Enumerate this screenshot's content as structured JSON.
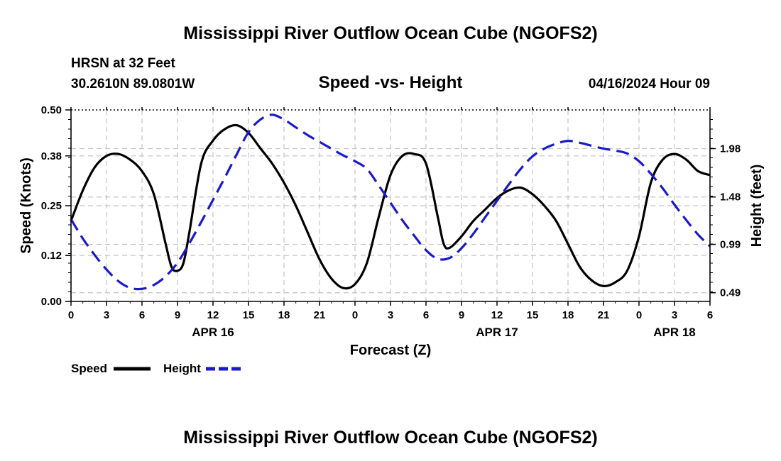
{
  "header": {
    "title": "Mississippi River Outflow Ocean Cube (NGOFS2)",
    "station": "HRSN at 32 Feet",
    "coords": "30.2610N  89.0801W",
    "datetime": "04/16/2024 Hour 09"
  },
  "footer": {
    "title": "Mississippi River Outflow Ocean Cube (NGOFS2)"
  },
  "colors": {
    "speed": "#000000",
    "height": "#1a1acc",
    "grid": "#c4c4c4"
  },
  "chart_data": {
    "type": "line",
    "title": "Speed -vs- Height",
    "xlabel": "Forecast (Z)",
    "ylabel": "Speed (Knots)",
    "y2label": "Height (feet)",
    "x_range": [
      0,
      54
    ],
    "x_ticks": [
      0,
      3,
      6,
      9,
      12,
      15,
      18,
      21,
      24,
      27,
      30,
      33,
      36,
      39,
      42,
      45,
      48,
      51,
      54
    ],
    "x_tick_labels": [
      "0",
      "3",
      "6",
      "9",
      "12",
      "15",
      "18",
      "21",
      "0",
      "3",
      "6",
      "9",
      "12",
      "15",
      "18",
      "21",
      "0",
      "3",
      "6"
    ],
    "date_labels": [
      {
        "at": 12,
        "label": "APR 16"
      },
      {
        "at": 36,
        "label": "APR 17"
      },
      {
        "at": 51,
        "label": "APR 18"
      }
    ],
    "ylim": [
      0,
      0.5
    ],
    "y_ticks": [
      0.0,
      0.12,
      0.25,
      0.38,
      0.5
    ],
    "y_tick_labels": [
      "0.00",
      "0.12",
      "0.25",
      "0.38",
      "0.50"
    ],
    "y2lim": [
      0.4,
      2.38
    ],
    "y2_ticks": [
      0.49,
      0.99,
      1.48,
      1.98
    ],
    "y2_tick_labels": [
      "0.49",
      "0.99",
      "1.48",
      "1.98"
    ],
    "legend": [
      {
        "name": "Speed",
        "style": "solid"
      },
      {
        "name": "Height",
        "style": "dashed"
      }
    ],
    "series": [
      {
        "name": "Speed",
        "axis": "left",
        "x": [
          0,
          1,
          2,
          3,
          4,
          5,
          6,
          7,
          8,
          8.5,
          9,
          9.5,
          10,
          11,
          12,
          13,
          14,
          15,
          16,
          17,
          18,
          19,
          20,
          21,
          22,
          23,
          24,
          25,
          26,
          27,
          28,
          29,
          30,
          31,
          31.5,
          32,
          33,
          34,
          35,
          36,
          37,
          38,
          39,
          40,
          41,
          42,
          43,
          44,
          45,
          46,
          47,
          48,
          49,
          50,
          51,
          52,
          53,
          54
        ],
        "values": [
          0.21,
          0.29,
          0.35,
          0.38,
          0.385,
          0.37,
          0.34,
          0.28,
          0.15,
          0.09,
          0.08,
          0.1,
          0.18,
          0.36,
          0.42,
          0.45,
          0.46,
          0.44,
          0.4,
          0.36,
          0.31,
          0.25,
          0.18,
          0.11,
          0.06,
          0.035,
          0.045,
          0.1,
          0.22,
          0.33,
          0.38,
          0.385,
          0.36,
          0.22,
          0.15,
          0.14,
          0.17,
          0.21,
          0.24,
          0.27,
          0.29,
          0.297,
          0.28,
          0.25,
          0.21,
          0.15,
          0.09,
          0.055,
          0.04,
          0.05,
          0.08,
          0.17,
          0.31,
          0.37,
          0.385,
          0.37,
          0.34,
          0.33
        ]
      },
      {
        "name": "Height",
        "axis": "right",
        "x": [
          0,
          1,
          2,
          3,
          4,
          5,
          6,
          7,
          8,
          9,
          10,
          11,
          12,
          13,
          14,
          15,
          16,
          17,
          18,
          19,
          20,
          21,
          22,
          23,
          24,
          25,
          26,
          27,
          28,
          29,
          30,
          31,
          32,
          33,
          34,
          35,
          36,
          37,
          38,
          39,
          40,
          41,
          42,
          43,
          44,
          45,
          46,
          47,
          48,
          49,
          50,
          51,
          52,
          53,
          54
        ],
        "values": [
          1.25,
          1.05,
          0.88,
          0.73,
          0.61,
          0.54,
          0.53,
          0.57,
          0.66,
          0.8,
          1.0,
          1.22,
          1.45,
          1.68,
          1.92,
          2.15,
          2.28,
          2.33,
          2.28,
          2.2,
          2.12,
          2.05,
          1.98,
          1.91,
          1.85,
          1.77,
          1.6,
          1.42,
          1.24,
          1.08,
          0.93,
          0.84,
          0.85,
          0.95,
          1.1,
          1.27,
          1.44,
          1.61,
          1.77,
          1.9,
          1.98,
          2.03,
          2.06,
          2.04,
          2.01,
          1.98,
          1.96,
          1.93,
          1.85,
          1.72,
          1.57,
          1.4,
          1.24,
          1.09,
          0.97
        ]
      }
    ]
  }
}
